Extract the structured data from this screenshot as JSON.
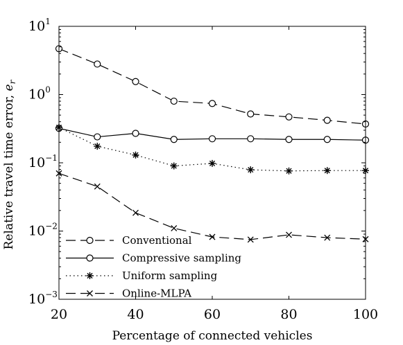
{
  "chart_data": {
    "type": "line",
    "xlabel": "Percentage of connected vehicles",
    "ylabel_text": "Relative travel time error, ",
    "ylabel_var": "e",
    "ylabel_sub": "r",
    "y_scale": "log",
    "xlim": [
      20,
      100
    ],
    "ylim": [
      0.001,
      10
    ],
    "x_ticks": [
      "20",
      "40",
      "60",
      "80",
      "100"
    ],
    "y_ticks": [
      {
        "base": "10",
        "exp": "1"
      },
      {
        "base": "10",
        "exp": "0"
      },
      {
        "base": "10",
        "exp": "−1"
      },
      {
        "base": "10",
        "exp": "−2"
      },
      {
        "base": "10",
        "exp": "−3"
      }
    ],
    "grid": false,
    "legend_position": "bottom-left",
    "x": [
      20,
      30,
      40,
      50,
      60,
      70,
      80,
      90,
      100
    ],
    "series": [
      {
        "name": "Conventional",
        "marker": "circle",
        "line": "dashed",
        "values": [
          4.7,
          2.8,
          1.55,
          0.8,
          0.74,
          0.52,
          0.47,
          0.42,
          0.37
        ]
      },
      {
        "name": "Compressive sampling",
        "marker": "circle",
        "line": "solid",
        "values": [
          0.32,
          0.24,
          0.27,
          0.22,
          0.225,
          0.225,
          0.22,
          0.22,
          0.215
        ]
      },
      {
        "name": "Uniform sampling",
        "marker": "asterisk",
        "line": "dotted",
        "values": [
          0.33,
          0.175,
          0.13,
          0.09,
          0.098,
          0.079,
          0.076,
          0.077,
          0.077
        ]
      },
      {
        "name": "Online-MLPA",
        "marker": "cross",
        "line": "dashed",
        "values": [
          0.07,
          0.045,
          0.0185,
          0.011,
          0.0082,
          0.0075,
          0.0088,
          0.008,
          0.0076
        ]
      }
    ]
  }
}
